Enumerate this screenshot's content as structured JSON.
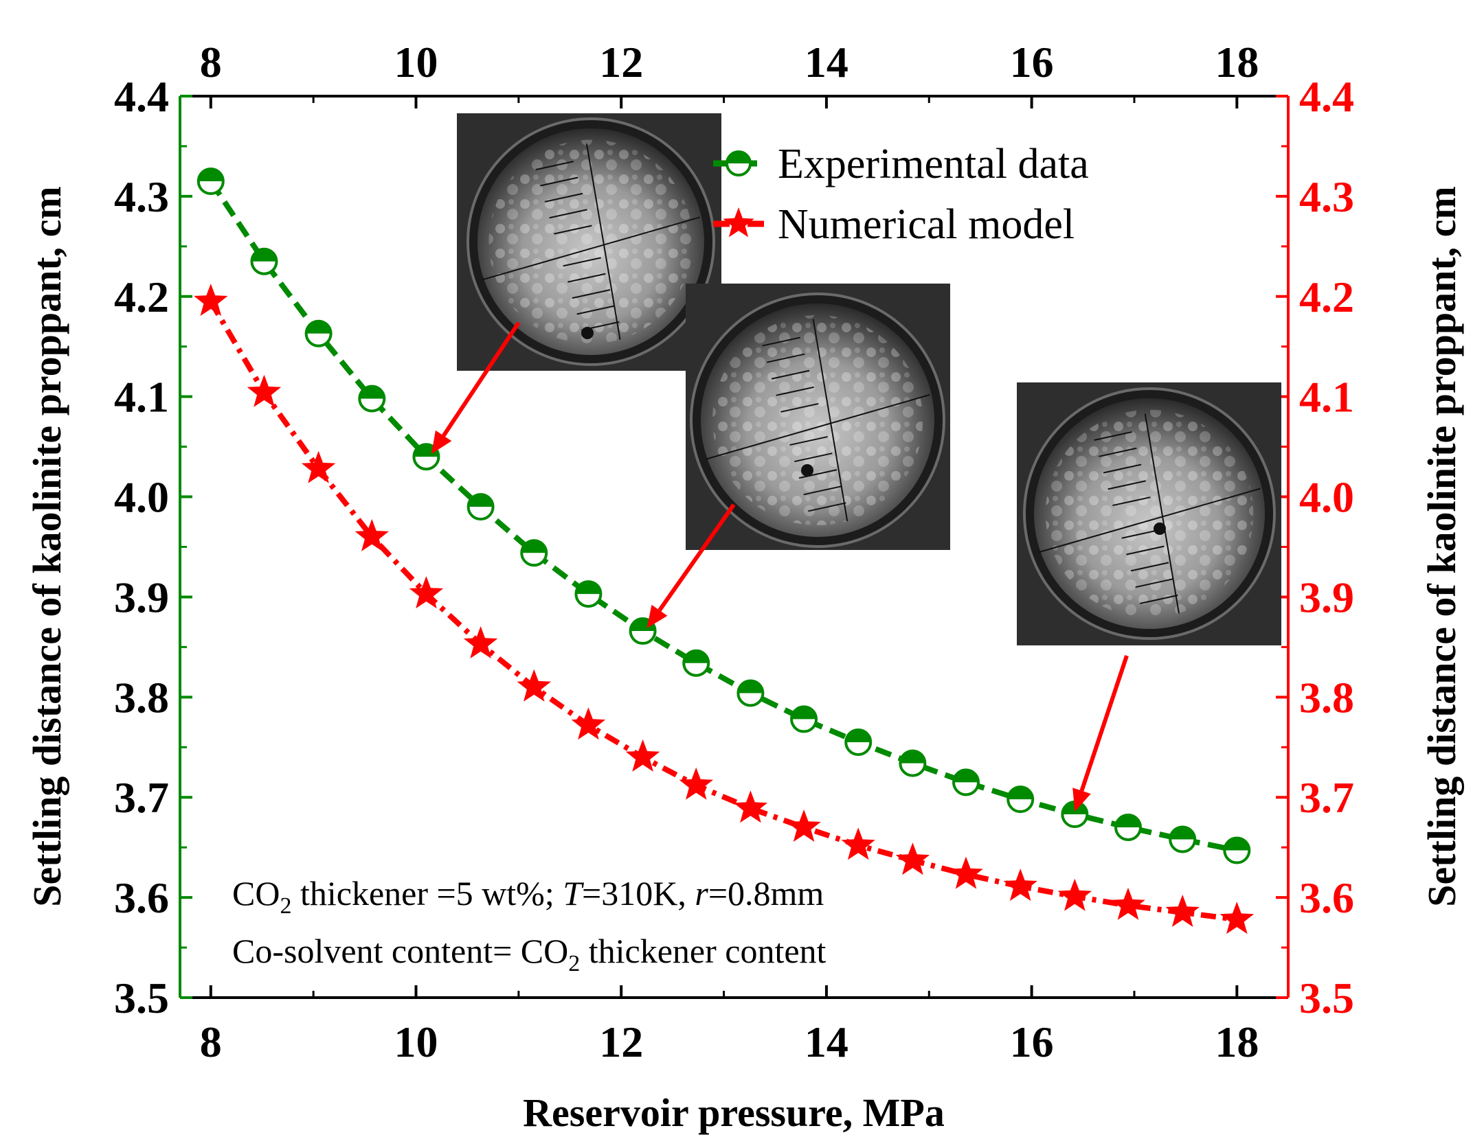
{
  "colors": {
    "experimental": "#008a00",
    "numerical": "#ff0000",
    "axis": "#000000",
    "inset_bg": "#2e2e2e"
  },
  "chart_data": {
    "type": "line",
    "title": "",
    "xlabel": "Reservoir pressure, MPa",
    "ylabel_left": "Settling distance of kaolinite proppant, cm",
    "ylabel_right": "Settling distance of kaolinite proppant, cm",
    "xlim": [
      7.7,
      18.5
    ],
    "ylim": [
      3.5,
      4.4
    ],
    "x_ticks": [
      "8",
      "10",
      "12",
      "14",
      "16",
      "18"
    ],
    "y_ticks": [
      "3.5",
      "3.6",
      "3.7",
      "3.8",
      "3.9",
      "4.0",
      "4.1",
      "4.2",
      "4.3",
      "4.4"
    ],
    "series": [
      {
        "name": "Experimental data",
        "color": "#008a00",
        "marker": "half-filled-circle",
        "line": "dashed",
        "x": [
          8.0,
          8.52,
          9.05,
          9.57,
          10.1,
          10.63,
          11.15,
          11.68,
          12.21,
          12.73,
          13.26,
          13.78,
          14.31,
          14.84,
          15.36,
          15.89,
          16.42,
          16.94,
          17.47,
          18.0
        ],
        "values": [
          4.315,
          4.235,
          4.163,
          4.098,
          4.04,
          3.99,
          3.944,
          3.903,
          3.866,
          3.834,
          3.804,
          3.778,
          3.755,
          3.734,
          3.715,
          3.698,
          3.683,
          3.67,
          3.658,
          3.647
        ]
      },
      {
        "name": "Numerical model",
        "color": "#ff0000",
        "marker": "star",
        "line": "dash-dot",
        "x": [
          8.0,
          8.52,
          9.05,
          9.57,
          10.1,
          10.63,
          11.15,
          11.68,
          12.21,
          12.73,
          13.26,
          13.78,
          14.31,
          14.84,
          15.36,
          15.89,
          16.42,
          16.94,
          17.47,
          18.0
        ],
        "values": [
          4.195,
          4.104,
          4.028,
          3.96,
          3.903,
          3.853,
          3.81,
          3.772,
          3.74,
          3.712,
          3.689,
          3.67,
          3.652,
          3.637,
          3.623,
          3.611,
          3.601,
          3.592,
          3.585,
          3.578
        ]
      }
    ],
    "annotations": {
      "line1_prefix": "CO",
      "line1_sub": "2",
      "line1_middle": " thickener =5 wt%; ",
      "line1_T": "T",
      "line1_T_value": "=310K, ",
      "line1_r": "r",
      "line1_r_value": "=0.8mm",
      "line2_prefix": "Co-solvent content= CO",
      "line2_sub": "2",
      "line2_suffix": " thickener content"
    },
    "legend_position": "top-center"
  },
  "insets": [
    {
      "name": "inset-image-1",
      "description_icon": "microscope-view",
      "points_to": {
        "x": 10.15,
        "y": 4.04
      }
    },
    {
      "name": "inset-image-2",
      "description_icon": "microscope-view",
      "points_to": {
        "x": 12.25,
        "y": 3.866
      }
    },
    {
      "name": "inset-image-3",
      "description_icon": "microscope-view",
      "points_to": {
        "x": 16.42,
        "y": 3.683
      }
    }
  ]
}
